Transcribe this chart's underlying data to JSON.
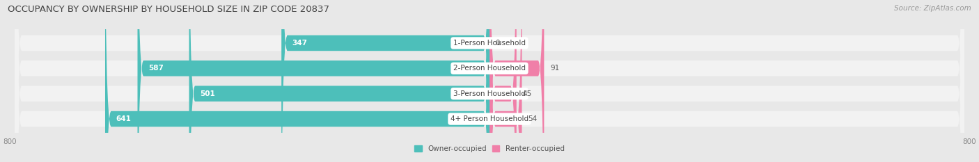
{
  "title": "OCCUPANCY BY OWNERSHIP BY HOUSEHOLD SIZE IN ZIP CODE 20837",
  "source": "Source: ZipAtlas.com",
  "categories": [
    "1-Person Household",
    "2-Person Household",
    "3-Person Household",
    "4+ Person Household"
  ],
  "owner_values": [
    347,
    587,
    501,
    641
  ],
  "renter_values": [
    0,
    91,
    45,
    54
  ],
  "owner_color": "#4DBFBA",
  "renter_color": "#F07FA8",
  "background_color": "#E8E8E8",
  "row_bg_color": "#F2F2F2",
  "axis_limit": 800,
  "legend_owner": "Owner-occupied",
  "legend_renter": "Renter-occupied",
  "title_fontsize": 9.5,
  "source_fontsize": 7.5,
  "label_fontsize": 7.5,
  "value_fontsize": 7.5,
  "tick_fontsize": 7.5,
  "bar_height": 0.62,
  "inner_label_threshold": 200
}
